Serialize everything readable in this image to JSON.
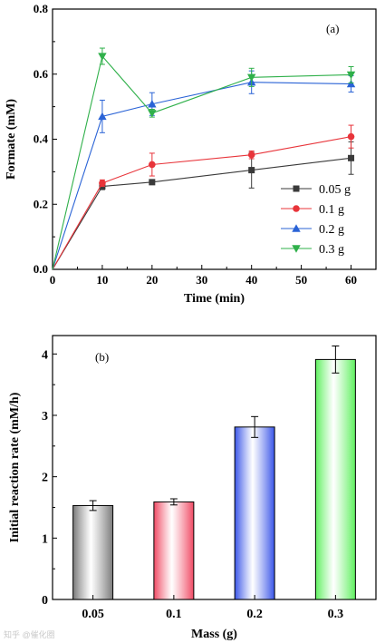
{
  "chart_data": [
    {
      "type": "line",
      "panel_label": "(a)",
      "xlabel": "Time (min)",
      "ylabel": "Formate (mM)",
      "xlim": [
        0,
        65
      ],
      "ylim": [
        0,
        0.8
      ],
      "xticks": [
        "0",
        "10",
        "20",
        "30",
        "40",
        "50",
        "60"
      ],
      "yticks": [
        "0.0",
        "0.2",
        "0.4",
        "0.6",
        "0.8"
      ],
      "grid": false,
      "legend_position": "lower-right",
      "x": [
        0,
        10,
        20,
        40,
        60
      ],
      "series": [
        {
          "name": "0.05 g",
          "color": "#3a3a3a",
          "marker": "square",
          "values": [
            0,
            0.255,
            0.268,
            0.305,
            0.342
          ],
          "errors": [
            0,
            0.01,
            0.005,
            0.055,
            0.05
          ]
        },
        {
          "name": "0.1 g",
          "color": "#e8343a",
          "marker": "circle",
          "values": [
            0,
            0.265,
            0.322,
            0.352,
            0.408
          ],
          "errors": [
            0,
            0.01,
            0.035,
            0.012,
            0.035
          ]
        },
        {
          "name": "0.2 g",
          "color": "#2a63d6",
          "marker": "triangle-up",
          "values": [
            0,
            0.47,
            0.508,
            0.575,
            0.57
          ],
          "errors": [
            0,
            0.05,
            0.035,
            0.035,
            0.025
          ]
        },
        {
          "name": "0.3 g",
          "color": "#2fb04a",
          "marker": "triangle-down",
          "values": [
            0,
            0.655,
            0.48,
            0.59,
            0.598
          ],
          "errors": [
            0,
            0.025,
            0.012,
            0.028,
            0.025
          ]
        }
      ]
    },
    {
      "type": "bar",
      "panel_label": "(b)",
      "xlabel": "Mass (g)",
      "ylabel": "Initial reaction rate (mM/h)",
      "ylim": [
        0,
        4.3
      ],
      "yticks": [
        "0",
        "1",
        "2",
        "3",
        "4"
      ],
      "grid": false,
      "categories": [
        "0.05",
        "0.1",
        "0.2",
        "0.3"
      ],
      "values": [
        1.53,
        1.59,
        2.81,
        3.91
      ],
      "errors": [
        0.08,
        0.05,
        0.17,
        0.22
      ],
      "colors": [
        "#7a7a7a",
        "#f04a64",
        "#3a55e8",
        "#5ef05e"
      ]
    }
  ],
  "watermark": "知乎 @催化圈"
}
